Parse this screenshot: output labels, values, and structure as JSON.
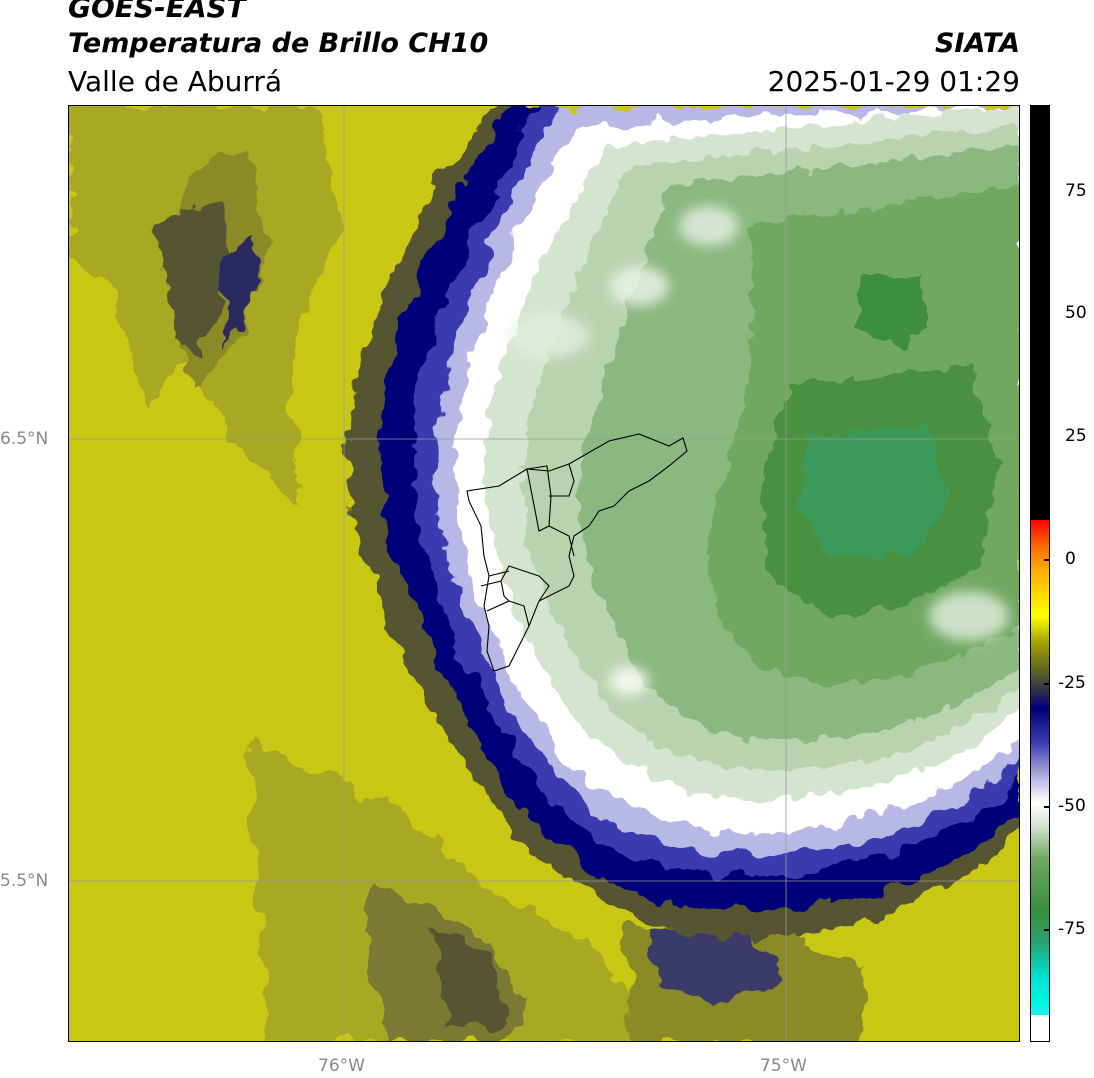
{
  "header": {
    "title_line1": "GOES-EAST",
    "title_line2": "Temperatura de Brillo CH10",
    "organization": "SIATA",
    "subtitle": "Valle de Aburrá",
    "datetime": "2025-01-29 01:29"
  },
  "map": {
    "lat_labels": [
      "6.5°N",
      "5.5°N"
    ],
    "lon_labels": [
      "76°W",
      "75°W"
    ],
    "colors": {
      "warm_background": "#c8c814",
      "olive": "#8a8a28",
      "dark_olive": "#545430",
      "navy": "#00007a",
      "lavender": "#b8b8e6",
      "white_ring": "#ffffff",
      "pale_green": "#d4e4ce",
      "mid_green": "#8ab880",
      "dark_green": "#4a9040",
      "teal_green": "#3a9a5a",
      "gridline": "#999999"
    }
  },
  "colorbar": {
    "tick_labels": [
      "75",
      "50",
      "25",
      "0",
      "-25",
      "-50",
      "-75"
    ]
  }
}
